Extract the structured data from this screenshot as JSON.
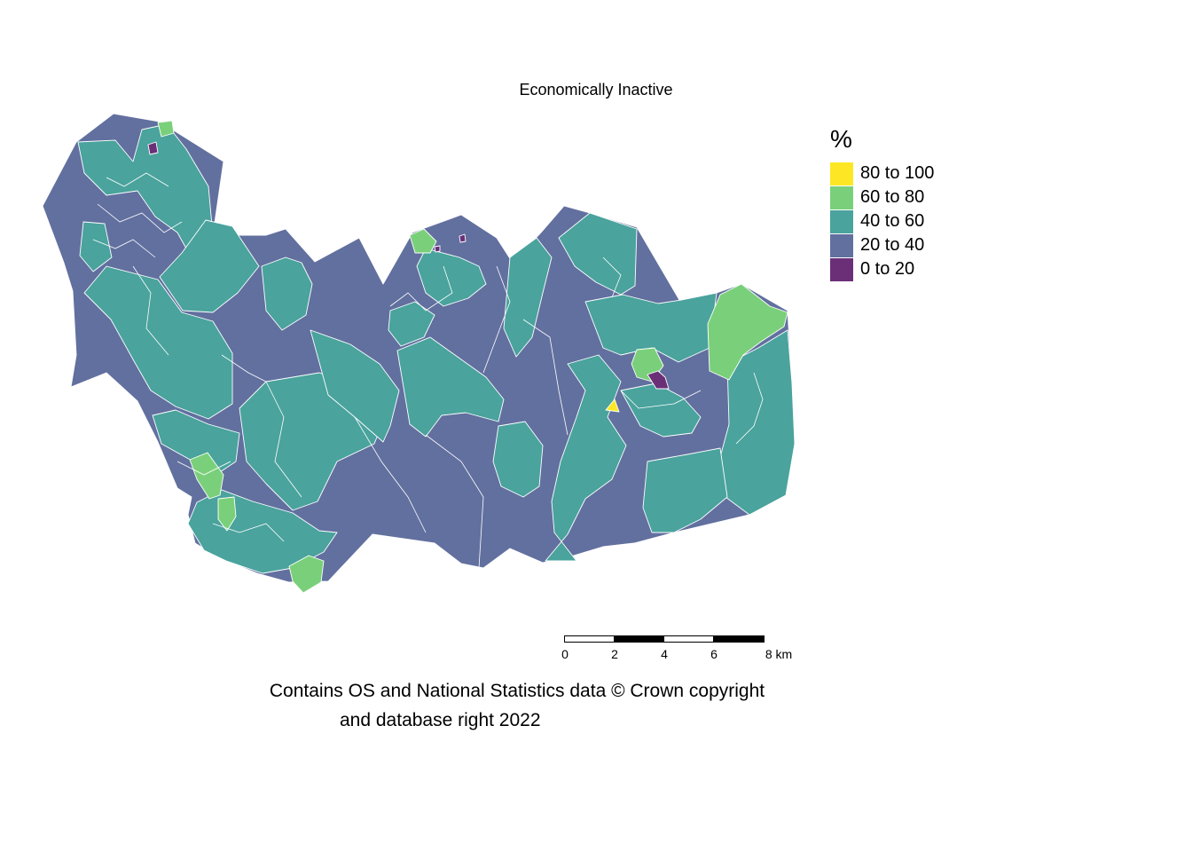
{
  "title": "Economically Inactive",
  "legend": {
    "title": "%",
    "items": [
      {
        "label": "80 to 100",
        "color": "#fde725"
      },
      {
        "label": "60 to 80",
        "color": "#7ad07a"
      },
      {
        "label": "40 to 60",
        "color": "#4aa39d"
      },
      {
        "label": "20 to 40",
        "color": "#62709f"
      },
      {
        "label": "0 to 20",
        "color": "#6b2f78"
      }
    ]
  },
  "scalebar": {
    "ticks": [
      "0",
      "2",
      "4",
      "6",
      "8 km"
    ]
  },
  "caption": {
    "line1": "Contains OS and National Statistics data © Crown copyright",
    "line2": "and database right 2022"
  },
  "colors": {
    "class_80_100": "#fde725",
    "class_60_80": "#7ad07a",
    "class_40_60": "#4aa39d",
    "class_20_40": "#62709f",
    "class_0_20": "#6b2f78",
    "boundary": "#ffffff"
  }
}
